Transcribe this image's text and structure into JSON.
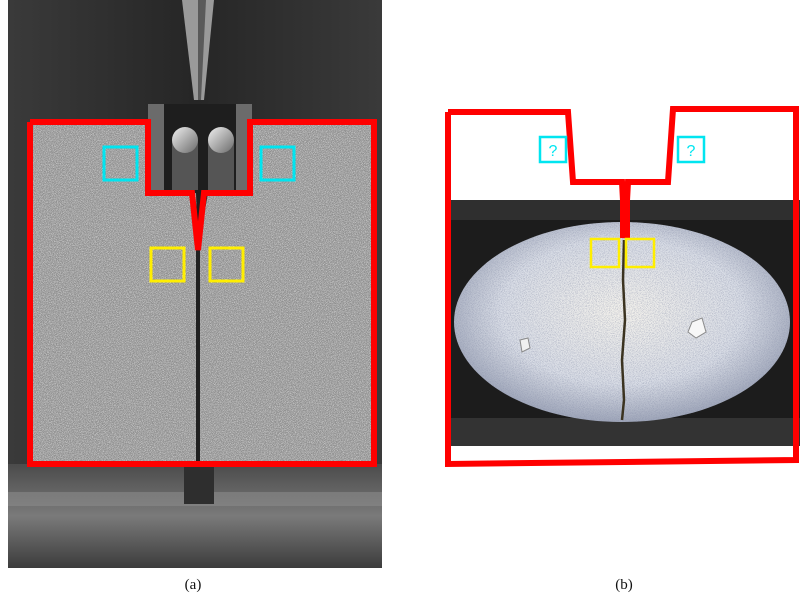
{
  "figure": {
    "panel_a": {
      "caption": "(a)",
      "outline_color": "#ff0000",
      "reference_box_color": "#00e5f0",
      "crack_box_color": "#ffee00"
    },
    "panel_b": {
      "caption": "(b)",
      "outline_color": "#ff0000",
      "reference_box_color": "#00e5f0",
      "crack_box_color": "#ffee00",
      "unknown_marker_left": "?",
      "unknown_marker_right": "?"
    }
  }
}
